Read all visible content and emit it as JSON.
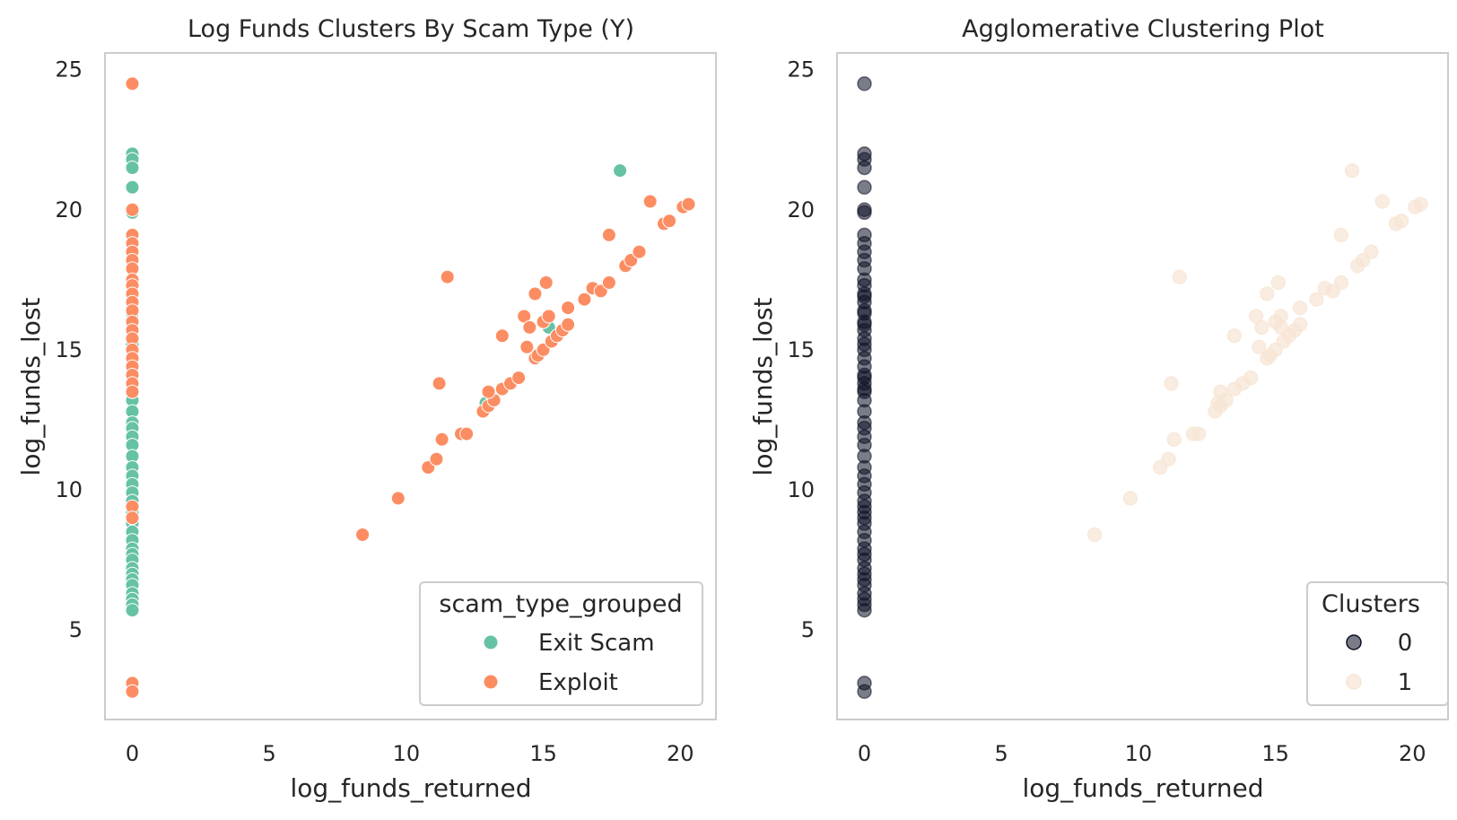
{
  "chart_data": [
    {
      "type": "scatter",
      "title": "Log Funds Clusters By Scam Type (Y)",
      "xlabel": "log_funds_returned",
      "ylabel": "log_funds_lost",
      "xlim": [
        -1,
        21.3
      ],
      "ylim": [
        1.8,
        25.6
      ],
      "xticks": [
        0,
        5,
        10,
        15,
        20
      ],
      "yticks": [
        5,
        10,
        15,
        20,
        25
      ],
      "xtick_labels": [
        "0",
        "5",
        "10",
        "15",
        "20"
      ],
      "ytick_labels": [
        "5",
        "10",
        "15",
        "20",
        "25"
      ],
      "grid": false,
      "legend": {
        "title": "scam_type_grouped",
        "placement": "lower-right"
      },
      "series": [
        {
          "name": "Exit Scam",
          "color": "#66c2a5",
          "alpha": 1,
          "points": [
            [
              0,
              22.0
            ],
            [
              0,
              21.8
            ],
            [
              0,
              21.5
            ],
            [
              0,
              20.8
            ],
            [
              0,
              19.9
            ],
            [
              0,
              16.9
            ],
            [
              0,
              16.3
            ],
            [
              0,
              15.9
            ],
            [
              0,
              15.2
            ],
            [
              0,
              14.0
            ],
            [
              0,
              13.6
            ],
            [
              0,
              13.2
            ],
            [
              0,
              12.8
            ],
            [
              0,
              12.4
            ],
            [
              0,
              12.2
            ],
            [
              0,
              11.9
            ],
            [
              0,
              11.6
            ],
            [
              0,
              11.2
            ],
            [
              0,
              10.8
            ],
            [
              0,
              10.5
            ],
            [
              0,
              10.2
            ],
            [
              0,
              9.9
            ],
            [
              0,
              9.6
            ],
            [
              0,
              9.2
            ],
            [
              0,
              8.8
            ],
            [
              0,
              8.5
            ],
            [
              0,
              8.2
            ],
            [
              0,
              7.9
            ],
            [
              0,
              7.7
            ],
            [
              0,
              7.5
            ],
            [
              0,
              7.2
            ],
            [
              0,
              7.0
            ],
            [
              0,
              6.8
            ],
            [
              0,
              6.6
            ],
            [
              0,
              6.3
            ],
            [
              0,
              6.1
            ],
            [
              0,
              5.9
            ],
            [
              0,
              5.7
            ],
            [
              17.8,
              21.4
            ],
            [
              12.9,
              13.1
            ],
            [
              15.2,
              15.8
            ]
          ]
        },
        {
          "name": "Exploit",
          "color": "#fc8d62",
          "alpha": 1,
          "points": [
            [
              0,
              24.5
            ],
            [
              0,
              20.0
            ],
            [
              0,
              19.1
            ],
            [
              0,
              18.8
            ],
            [
              0,
              18.5
            ],
            [
              0,
              18.2
            ],
            [
              0,
              17.9
            ],
            [
              0,
              17.5
            ],
            [
              0,
              17.3
            ],
            [
              0,
              17.0
            ],
            [
              0,
              16.7
            ],
            [
              0,
              16.4
            ],
            [
              0,
              16.0
            ],
            [
              0,
              15.7
            ],
            [
              0,
              15.4
            ],
            [
              0,
              15.0
            ],
            [
              0,
              14.7
            ],
            [
              0,
              14.4
            ],
            [
              0,
              14.1
            ],
            [
              0,
              13.8
            ],
            [
              0,
              13.5
            ],
            [
              0,
              9.4
            ],
            [
              0,
              9.0
            ],
            [
              0,
              3.1
            ],
            [
              0,
              2.8
            ],
            [
              8.4,
              8.4
            ],
            [
              9.7,
              9.7
            ],
            [
              10.8,
              10.8
            ],
            [
              11.1,
              11.1
            ],
            [
              11.3,
              11.8
            ],
            [
              11.2,
              13.8
            ],
            [
              11.5,
              17.6
            ],
            [
              12.0,
              12.0
            ],
            [
              12.2,
              12.0
            ],
            [
              12.8,
              12.8
            ],
            [
              13.0,
              13.0
            ],
            [
              13.2,
              13.2
            ],
            [
              13.0,
              13.5
            ],
            [
              13.5,
              13.6
            ],
            [
              13.8,
              13.8
            ],
            [
              14.1,
              14.0
            ],
            [
              13.5,
              15.5
            ],
            [
              14.3,
              16.2
            ],
            [
              14.4,
              15.1
            ],
            [
              14.5,
              15.8
            ],
            [
              14.7,
              14.7
            ],
            [
              14.7,
              17.0
            ],
            [
              14.8,
              14.8
            ],
            [
              15.0,
              15.0
            ],
            [
              15.0,
              16.0
            ],
            [
              15.1,
              17.4
            ],
            [
              15.2,
              16.2
            ],
            [
              15.3,
              15.3
            ],
            [
              15.5,
              15.5
            ],
            [
              15.7,
              15.7
            ],
            [
              15.9,
              15.9
            ],
            [
              15.9,
              16.5
            ],
            [
              16.5,
              16.8
            ],
            [
              16.8,
              17.2
            ],
            [
              17.1,
              17.1
            ],
            [
              17.4,
              17.4
            ],
            [
              17.4,
              19.1
            ],
            [
              18.0,
              18.0
            ],
            [
              18.2,
              18.2
            ],
            [
              18.5,
              18.5
            ],
            [
              18.9,
              20.3
            ],
            [
              19.4,
              19.5
            ],
            [
              19.6,
              19.6
            ],
            [
              20.1,
              20.1
            ],
            [
              20.3,
              20.2
            ]
          ]
        }
      ]
    },
    {
      "type": "scatter",
      "title": "Agglomerative Clustering Plot",
      "xlabel": "log_funds_returned",
      "ylabel": "log_funds_lost",
      "xlim": [
        -1,
        21.3
      ],
      "ylim": [
        1.8,
        25.6
      ],
      "xticks": [
        0,
        5,
        10,
        15,
        20
      ],
      "yticks": [
        5,
        10,
        15,
        20,
        25
      ],
      "xtick_labels": [
        "0",
        "5",
        "10",
        "15",
        "20"
      ],
      "ytick_labels": [
        "5",
        "10",
        "15",
        "20",
        "25"
      ],
      "grid": false,
      "legend": {
        "title": "Clusters",
        "placement": "lower-right"
      },
      "series": [
        {
          "name": "0",
          "color": "#0c1024",
          "alpha": 0.55,
          "points": [
            [
              0,
              24.5
            ],
            [
              0,
              22.0
            ],
            [
              0,
              21.8
            ],
            [
              0,
              21.5
            ],
            [
              0,
              20.8
            ],
            [
              0,
              20.0
            ],
            [
              0,
              19.9
            ],
            [
              0,
              19.1
            ],
            [
              0,
              18.8
            ],
            [
              0,
              18.5
            ],
            [
              0,
              18.2
            ],
            [
              0,
              17.9
            ],
            [
              0,
              17.5
            ],
            [
              0,
              17.3
            ],
            [
              0,
              17.0
            ],
            [
              0,
              16.9
            ],
            [
              0,
              16.7
            ],
            [
              0,
              16.4
            ],
            [
              0,
              16.3
            ],
            [
              0,
              16.0
            ],
            [
              0,
              15.9
            ],
            [
              0,
              15.7
            ],
            [
              0,
              15.4
            ],
            [
              0,
              15.2
            ],
            [
              0,
              15.0
            ],
            [
              0,
              14.7
            ],
            [
              0,
              14.4
            ],
            [
              0,
              14.1
            ],
            [
              0,
              14.0
            ],
            [
              0,
              13.8
            ],
            [
              0,
              13.6
            ],
            [
              0,
              13.5
            ],
            [
              0,
              13.2
            ],
            [
              0,
              12.8
            ],
            [
              0,
              12.4
            ],
            [
              0,
              12.2
            ],
            [
              0,
              11.9
            ],
            [
              0,
              11.6
            ],
            [
              0,
              11.2
            ],
            [
              0,
              10.8
            ],
            [
              0,
              10.5
            ],
            [
              0,
              10.2
            ],
            [
              0,
              9.9
            ],
            [
              0,
              9.6
            ],
            [
              0,
              9.4
            ],
            [
              0,
              9.2
            ],
            [
              0,
              9.0
            ],
            [
              0,
              8.8
            ],
            [
              0,
              8.5
            ],
            [
              0,
              8.2
            ],
            [
              0,
              7.9
            ],
            [
              0,
              7.7
            ],
            [
              0,
              7.5
            ],
            [
              0,
              7.2
            ],
            [
              0,
              7.0
            ],
            [
              0,
              6.8
            ],
            [
              0,
              6.6
            ],
            [
              0,
              6.3
            ],
            [
              0,
              6.1
            ],
            [
              0,
              5.9
            ],
            [
              0,
              5.7
            ],
            [
              0,
              3.1
            ],
            [
              0,
              2.8
            ]
          ]
        },
        {
          "name": "1",
          "color": "#f7e6d6",
          "alpha": 0.75,
          "points": [
            [
              17.8,
              21.4
            ],
            [
              12.9,
              13.1
            ],
            [
              15.2,
              15.8
            ],
            [
              8.4,
              8.4
            ],
            [
              9.7,
              9.7
            ],
            [
              10.8,
              10.8
            ],
            [
              11.1,
              11.1
            ],
            [
              11.3,
              11.8
            ],
            [
              11.2,
              13.8
            ],
            [
              11.5,
              17.6
            ],
            [
              12.0,
              12.0
            ],
            [
              12.2,
              12.0
            ],
            [
              12.8,
              12.8
            ],
            [
              13.0,
              13.0
            ],
            [
              13.2,
              13.2
            ],
            [
              13.0,
              13.5
            ],
            [
              13.5,
              13.6
            ],
            [
              13.8,
              13.8
            ],
            [
              14.1,
              14.0
            ],
            [
              13.5,
              15.5
            ],
            [
              14.3,
              16.2
            ],
            [
              14.4,
              15.1
            ],
            [
              14.5,
              15.8
            ],
            [
              14.7,
              14.7
            ],
            [
              14.7,
              17.0
            ],
            [
              14.8,
              14.8
            ],
            [
              15.0,
              15.0
            ],
            [
              15.0,
              16.0
            ],
            [
              15.1,
              17.4
            ],
            [
              15.2,
              16.2
            ],
            [
              15.3,
              15.3
            ],
            [
              15.5,
              15.5
            ],
            [
              15.7,
              15.7
            ],
            [
              15.9,
              15.9
            ],
            [
              15.9,
              16.5
            ],
            [
              16.5,
              16.8
            ],
            [
              16.8,
              17.2
            ],
            [
              17.1,
              17.1
            ],
            [
              17.4,
              17.4
            ],
            [
              17.4,
              19.1
            ],
            [
              18.0,
              18.0
            ],
            [
              18.2,
              18.2
            ],
            [
              18.5,
              18.5
            ],
            [
              18.9,
              20.3
            ],
            [
              19.4,
              19.5
            ],
            [
              19.6,
              19.6
            ],
            [
              20.1,
              20.1
            ],
            [
              20.3,
              20.2
            ]
          ]
        }
      ]
    }
  ]
}
